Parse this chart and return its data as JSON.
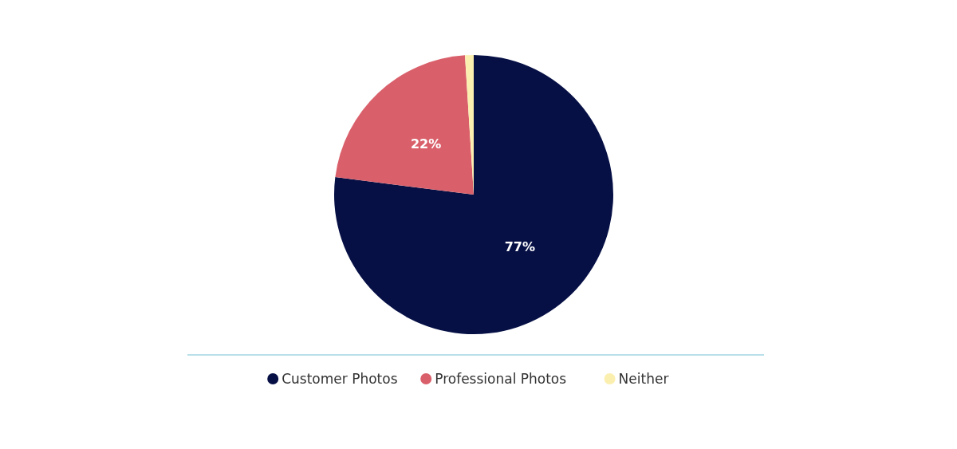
{
  "chart_data": {
    "type": "pie",
    "categories": [
      "Customer Photos",
      "Professional Photos",
      "Neither"
    ],
    "values": [
      77,
      22,
      1
    ],
    "colors": [
      "#061045",
      "#d9606b",
      "#fbefb0"
    ],
    "value_labels": [
      "77%",
      "22%",
      null
    ],
    "legend": "bottom"
  }
}
